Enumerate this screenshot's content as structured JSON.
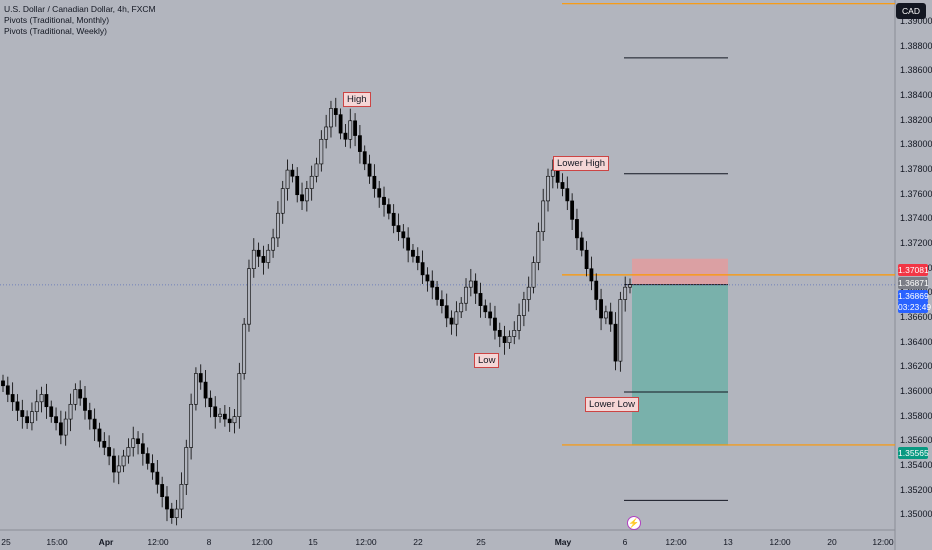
{
  "legend": {
    "title": "U.S. Dollar / Canadian Dollar, 4h, FXCM",
    "ind1": "Pivots (Traditional, Monthly)",
    "ind2": "Pivots (Traditional, Weekly)"
  },
  "currency_button": "CAD",
  "price_tags": {
    "stop": "1.37081",
    "entry": "1.36871",
    "current": "1.36869",
    "countdown": "03:23:49",
    "target": "1.35565"
  },
  "annotations": {
    "high": "High",
    "lower_high": "Lower High",
    "low": "Low",
    "lower_low": "Lower Low"
  },
  "colors": {
    "background": "#b2b5be",
    "candle": "#000000",
    "pivot_orange": "#ff9800",
    "stop_zone": "#e89a9a",
    "target_zone": "#6fb0a8",
    "stop_tag": "#f23645",
    "current_tag": "#2962ff",
    "target_tag": "#089981"
  },
  "chart_data": {
    "type": "candlestick",
    "symbol": "U.S. Dollar / Canadian Dollar",
    "timeframe": "4h",
    "ylim": [
      1.3488,
      1.3918
    ],
    "y_ticks": [
      1.35,
      1.352,
      1.354,
      1.356,
      1.358,
      1.36,
      1.362,
      1.364,
      1.366,
      1.368,
      1.37,
      1.372,
      1.374,
      1.376,
      1.378,
      1.38,
      1.382,
      1.384,
      1.386,
      1.388,
      1.39
    ],
    "y_tick_labels": [
      "1.35000",
      "1.35200",
      "1.35400",
      "1.35600",
      "1.35800",
      "1.36000",
      "1.36200",
      "1.36400",
      "1.36600",
      "1.36800",
      "1.37000",
      "1.37200",
      "1.37400",
      "1.37600",
      "1.37800",
      "1.38000",
      "1.38200",
      "1.38400",
      "1.38600",
      "1.38800",
      "1.39000"
    ],
    "x_tick_labels": [
      "25",
      "15:00",
      "Apr",
      "12:00",
      "8",
      "12:00",
      "15",
      "12:00",
      "22",
      "25",
      "May",
      "6",
      "12:00",
      "13",
      "12:00",
      "20",
      "12:00"
    ],
    "closes": [
      1.3605,
      1.3598,
      1.3592,
      1.3585,
      1.358,
      1.3575,
      1.3584,
      1.3592,
      1.3598,
      1.3588,
      1.358,
      1.3575,
      1.3565,
      1.3578,
      1.359,
      1.3602,
      1.3595,
      1.3585,
      1.3578,
      1.357,
      1.356,
      1.3555,
      1.3548,
      1.3535,
      1.354,
      1.3548,
      1.3555,
      1.3562,
      1.3558,
      1.355,
      1.3542,
      1.3535,
      1.3525,
      1.3515,
      1.3505,
      1.3498,
      1.3505,
      1.3525,
      1.3555,
      1.359,
      1.3615,
      1.3608,
      1.3595,
      1.3588,
      1.358,
      1.3582,
      1.3578,
      1.3575,
      1.358,
      1.3615,
      1.3655,
      1.37,
      1.3715,
      1.371,
      1.3705,
      1.3715,
      1.3725,
      1.3745,
      1.3765,
      1.378,
      1.3775,
      1.376,
      1.3755,
      1.3765,
      1.3775,
      1.3785,
      1.3805,
      1.3815,
      1.383,
      1.3825,
      1.381,
      1.3805,
      1.382,
      1.3808,
      1.3795,
      1.3785,
      1.3775,
      1.3765,
      1.3758,
      1.3752,
      1.3745,
      1.3735,
      1.373,
      1.3725,
      1.3715,
      1.371,
      1.3705,
      1.3695,
      1.369,
      1.3685,
      1.3675,
      1.367,
      1.366,
      1.3655,
      1.3665,
      1.3672,
      1.3685,
      1.369,
      1.368,
      1.367,
      1.3665,
      1.366,
      1.365,
      1.3645,
      1.364,
      1.3645,
      1.365,
      1.3662,
      1.3675,
      1.3685,
      1.3705,
      1.373,
      1.3755,
      1.3775,
      1.378,
      1.377,
      1.3765,
      1.3755,
      1.374,
      1.3725,
      1.3715,
      1.37,
      1.369,
      1.3675,
      1.366,
      1.3665,
      1.3655,
      1.3625,
      1.3675,
      1.3685,
      1.3687
    ]
  },
  "pivot_levels": {
    "monthly_upper": 1.3915,
    "monthly_mid": 1.3695,
    "monthly_lower": 1.3557,
    "weekly_r2": 1.3871,
    "weekly_r1": 1.3777,
    "weekly_p": 1.36871,
    "weekly_s1": 1.36,
    "weekly_s2": 1.3512
  },
  "position": {
    "stop": 1.37081,
    "entry": 1.36871,
    "target": 1.35565
  }
}
